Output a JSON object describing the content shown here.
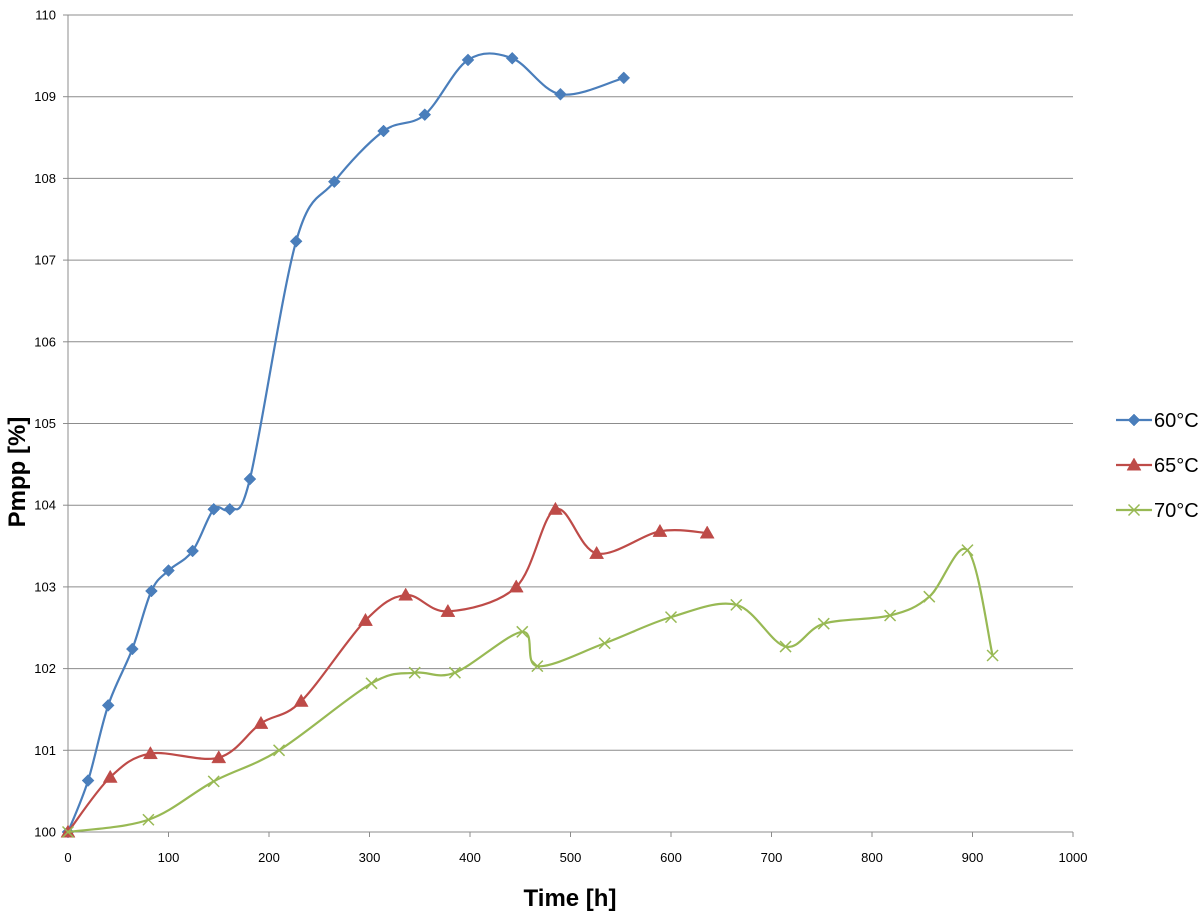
{
  "chart_data": {
    "type": "line",
    "title": "",
    "xlabel": "Time [h]",
    "ylabel": "Pmpp [%]",
    "xlim": [
      0,
      1000
    ],
    "ylim": [
      100,
      110
    ],
    "xticks": [
      0,
      100,
      200,
      300,
      400,
      500,
      600,
      700,
      800,
      900,
      1000
    ],
    "yticks": [
      100,
      101,
      102,
      103,
      104,
      105,
      106,
      107,
      108,
      109,
      110
    ],
    "grid": "horizontal",
    "legend_position": "right",
    "series": [
      {
        "name": "60°C",
        "color": "#4a7ebb",
        "marker": "diamond",
        "x": [
          0,
          20,
          40,
          64,
          83,
          100,
          124,
          145,
          161,
          181,
          227,
          265,
          314,
          355,
          398,
          442,
          490,
          553
        ],
        "y": [
          100.0,
          100.63,
          101.55,
          102.24,
          102.95,
          103.2,
          103.44,
          103.95,
          103.95,
          104.32,
          107.23,
          107.96,
          108.58,
          108.78,
          109.45,
          109.47,
          109.03,
          109.23
        ]
      },
      {
        "name": "65°C",
        "color": "#be4b48",
        "marker": "triangle",
        "x": [
          0,
          42,
          82,
          150,
          192,
          232,
          296,
          336,
          378,
          446,
          485,
          526,
          589,
          636
        ],
        "y": [
          100.0,
          100.67,
          100.96,
          100.91,
          101.33,
          101.6,
          102.59,
          102.9,
          102.7,
          103.0,
          103.95,
          103.41,
          103.68,
          103.66
        ]
      },
      {
        "name": "70°C",
        "color": "#98b954",
        "marker": "x",
        "x": [
          0,
          80,
          145,
          210,
          302,
          345,
          385,
          452,
          467,
          534,
          600,
          665,
          714,
          752,
          818,
          857,
          895,
          920
        ],
        "y": [
          100.0,
          100.15,
          100.62,
          101.0,
          101.82,
          101.95,
          101.95,
          102.45,
          102.03,
          102.31,
          102.63,
          102.78,
          102.27,
          102.55,
          102.65,
          102.88,
          103.45,
          102.16
        ]
      }
    ]
  }
}
